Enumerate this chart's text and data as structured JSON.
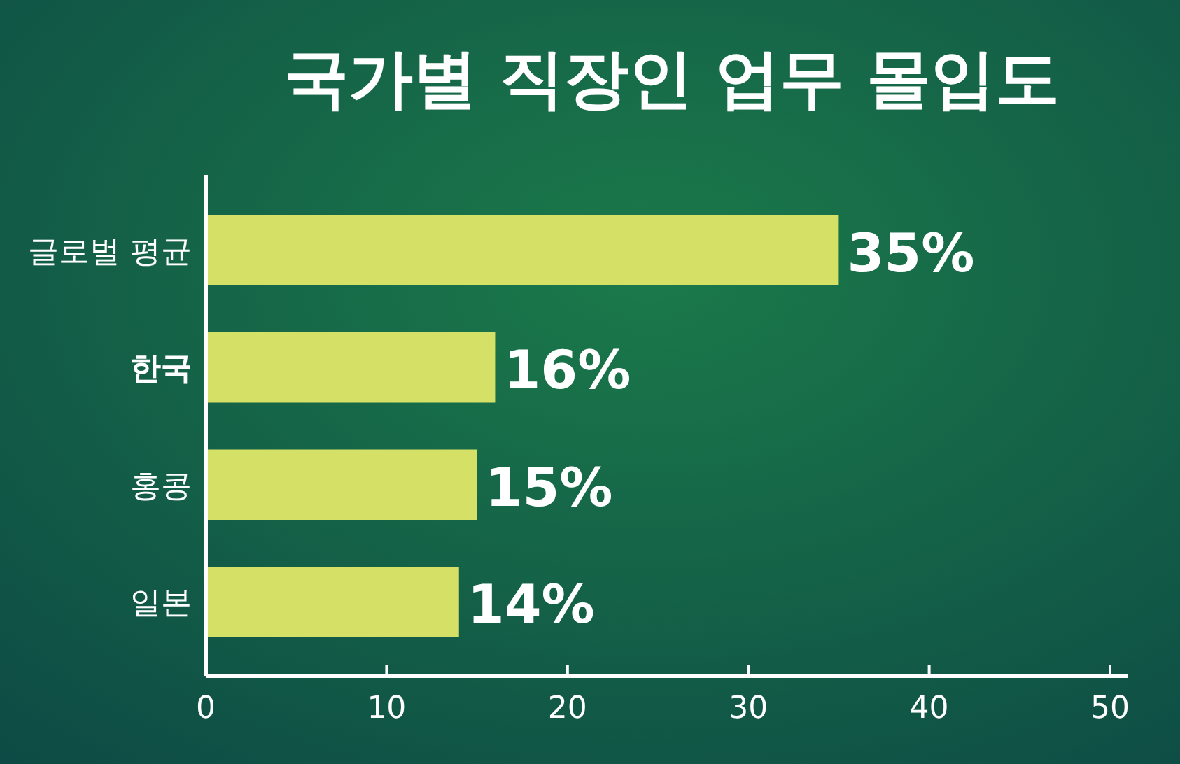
{
  "chart_data": {
    "type": "bar",
    "orientation": "horizontal",
    "title": "국가별 직장인 업무 몰입도",
    "categories": [
      "글로벌 평균",
      "한국",
      "홍콩",
      "일본"
    ],
    "values": [
      35,
      16,
      15,
      14
    ],
    "value_labels": [
      "35%",
      "16%",
      "15%",
      "14%"
    ],
    "color": "#d4e066",
    "xlim": [
      0,
      51
    ],
    "xticks": [
      0,
      10,
      20,
      30,
      40,
      50
    ]
  }
}
